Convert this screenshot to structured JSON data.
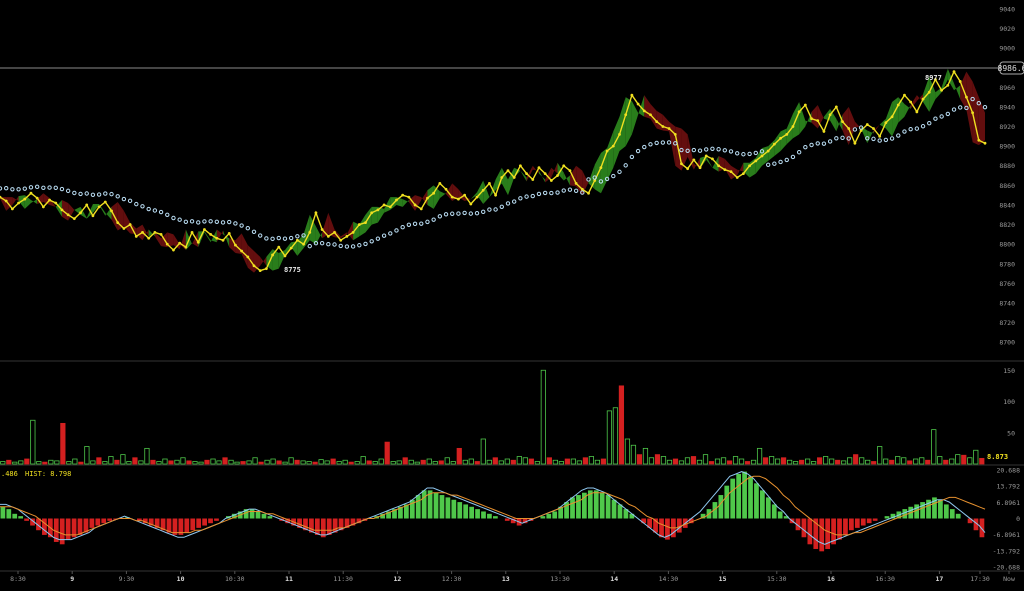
{
  "chart_data": [
    {
      "type": "line",
      "panel": "price",
      "ylim": [
        8690,
        9045
      ],
      "y_ticks": [
        8700,
        8720,
        8740,
        8760,
        8780,
        8800,
        8820,
        8840,
        8860,
        8880,
        8900,
        8920,
        8940,
        8960,
        9000,
        9020,
        9040
      ],
      "current_price_label": "8986.6",
      "current_price": 8986.6,
      "annotations": [
        {
          "text": "8977",
          "x": "17",
          "y": 8977
        },
        {
          "text": "8775",
          "x": "11",
          "y": 8775
        }
      ],
      "series": [
        {
          "values": [
            8848,
            8844,
            8836,
            8842,
            8846,
            8852,
            8847,
            8838,
            8845,
            8842,
            8835,
            8830,
            8826,
            8832,
            8840,
            8829,
            8838,
            8843,
            8834,
            8822,
            8816,
            8820,
            8808,
            8812,
            8806,
            8812,
            8810,
            8800,
            8794,
            8801,
            8797,
            8812,
            8802,
            8815,
            8810,
            8806,
            8804,
            8811,
            8799,
            8793,
            8787,
            8778,
            8773,
            8775,
            8789,
            8797,
            8788,
            8796,
            8804,
            8800,
            8812,
            8832,
            8815,
            8808,
            8812,
            8804,
            8808,
            8812,
            8820,
            8822,
            8832,
            8835,
            8840,
            8838,
            8845,
            8850,
            8848,
            8840,
            8836,
            8847,
            8852,
            8862,
            8856,
            8848,
            8846,
            8850,
            8841,
            8848,
            8855,
            8862,
            8850,
            8868,
            8875,
            8868,
            8880,
            8872,
            8866,
            8878,
            8872,
            8865,
            8870,
            8880,
            8875,
            8862,
            8856,
            8852,
            8865,
            8878,
            8895,
            8900,
            8912,
            8932,
            8952,
            8943,
            8936,
            8932,
            8925,
            8920,
            8918,
            8912,
            8882,
            8877,
            8886,
            8878,
            8890,
            8887,
            8880,
            8876,
            8874,
            8868,
            8872,
            8880,
            8885,
            8890,
            8895,
            8902,
            8908,
            8912,
            8920,
            8935,
            8942,
            8928,
            8926,
            8915,
            8932,
            8940,
            8925,
            8918,
            8903,
            8916,
            8922,
            8918,
            8910,
            8924,
            8930,
            8942,
            8952,
            8945,
            8935,
            8948,
            8955,
            8968,
            8957,
            8962,
            8976,
            8966,
            8950,
            8934,
            8906,
            8903
          ]
        }
      ]
    },
    {
      "type": "bar",
      "panel": "volume",
      "ylim": [
        0,
        160
      ],
      "y_ticks": [
        50,
        100,
        150
      ],
      "current_value_label": "8.873",
      "current_value": 8.873,
      "series": [
        {
          "values": [
            4,
            6,
            3,
            5,
            8,
            70,
            4,
            3,
            6,
            5,
            65,
            4,
            8,
            3,
            28,
            5,
            10,
            4,
            12,
            6,
            15,
            4,
            10,
            5,
            25,
            6,
            4,
            8,
            5,
            6,
            10,
            5,
            4,
            3,
            6,
            8,
            5,
            10,
            6,
            3,
            4,
            5,
            10,
            3,
            6,
            8,
            5,
            3,
            10,
            6,
            5,
            4,
            3,
            7,
            5,
            8,
            4,
            6,
            3,
            4,
            12,
            5,
            4,
            8,
            35,
            4,
            5,
            10,
            6,
            3,
            6,
            8,
            4,
            5,
            10,
            4,
            25,
            6,
            8,
            4,
            40,
            6,
            10,
            5,
            8,
            6,
            12,
            10,
            8,
            4,
            150,
            10,
            6,
            4,
            8,
            8,
            5,
            10,
            12,
            6,
            8,
            85,
            90,
            125,
            40,
            30,
            15,
            25,
            10,
            15,
            12,
            6,
            8,
            5,
            10,
            12,
            6,
            15,
            4,
            8,
            10,
            5,
            12,
            8,
            4,
            6,
            25,
            10,
            12,
            8,
            10,
            6,
            4,
            6,
            8,
            4,
            10,
            12,
            8,
            6,
            5,
            10,
            15,
            10,
            6,
            4,
            28,
            8,
            6,
            12,
            10,
            5,
            8,
            10,
            6,
            55,
            12,
            6,
            8,
            15,
            14,
            10,
            22,
            9
          ]
        }
      ]
    },
    {
      "type": "bar",
      "panel": "macd",
      "ylim": [
        -20.688,
        20.688
      ],
      "y_ticks": [
        20.688,
        13.792,
        6.8961,
        0,
        -6.8961,
        -13.792,
        -20.688
      ],
      "y_tick_labels": [
        "20.688",
        "13.792",
        "6.8961",
        "0",
        "-6.8961",
        "-13.792",
        "-20.688"
      ],
      "header_labels": {
        "left": ".486",
        "hist": "HIST: 8.798"
      },
      "series": [
        {
          "values": [
            5,
            4,
            2,
            1,
            -1,
            -3,
            -5,
            -7,
            -8,
            -10,
            -11,
            -9,
            -8,
            -7,
            -6,
            -4,
            -3,
            -2,
            -1,
            -0.5,
            0,
            0.5,
            0,
            -1,
            -2,
            -3,
            -4,
            -5,
            -6,
            -7,
            -7,
            -6,
            -5,
            -4,
            -3,
            -2,
            -1,
            0,
            1,
            2,
            3,
            4,
            4,
            3,
            2,
            1,
            0,
            -1,
            -2,
            -3,
            -4,
            -5,
            -6,
            -7,
            -8,
            -7,
            -6,
            -5,
            -4,
            -3,
            -2,
            -1,
            0,
            1,
            2,
            3,
            4,
            5,
            6,
            8,
            10,
            12,
            12,
            11,
            10,
            9,
            8,
            7,
            6,
            5,
            4,
            3,
            2,
            1,
            0,
            -1,
            -2,
            -3,
            -2,
            -1,
            0,
            1,
            2,
            3,
            5,
            7,
            9,
            10,
            11,
            12,
            12,
            11,
            10,
            8,
            6,
            4,
            2,
            0,
            -2,
            -4,
            -6,
            -8,
            -9,
            -8,
            -6,
            -4,
            -2,
            0,
            2,
            4,
            7,
            10,
            14,
            17,
            19,
            20,
            18,
            15,
            12,
            9,
            6,
            3,
            1,
            -2,
            -5,
            -8,
            -11,
            -13,
            -14,
            -13,
            -11,
            -9,
            -7,
            -5,
            -4,
            -3,
            -2,
            -1,
            0,
            1,
            2,
            3,
            4,
            5,
            6,
            7,
            8,
            9,
            8,
            6,
            4,
            2,
            0,
            -2,
            -5,
            -8
          ]
        },
        {
          "values": [
            6,
            6,
            5,
            4,
            2,
            0,
            -2,
            -4,
            -6,
            -8,
            -9,
            -9,
            -9,
            -8,
            -7,
            -6,
            -4,
            -3,
            -2,
            -1,
            0,
            1,
            0,
            -1,
            -2,
            -3,
            -4,
            -5,
            -6,
            -7,
            -8,
            -8,
            -7,
            -6,
            -5,
            -4,
            -3,
            -2,
            0,
            1,
            2,
            3,
            4,
            4,
            3,
            2,
            1,
            0,
            -1,
            -2,
            -3,
            -4,
            -5,
            -6,
            -7,
            -7,
            -6,
            -5,
            -4,
            -3,
            -2,
            -1,
            0,
            1,
            2,
            3,
            4,
            5,
            6,
            7,
            9,
            11,
            13,
            13,
            12,
            11,
            10,
            9,
            8,
            7,
            6,
            5,
            4,
            3,
            2,
            1,
            0,
            -1,
            -2,
            -1,
            0,
            1,
            2,
            3,
            4,
            6,
            8,
            10,
            12,
            13,
            13,
            12,
            11,
            9,
            7,
            5,
            3,
            1,
            -1,
            -3,
            -5,
            -7,
            -8,
            -7,
            -5,
            -3,
            -1,
            1,
            3,
            6,
            9,
            12,
            15,
            18,
            19,
            20,
            19,
            17,
            14,
            11,
            8,
            5,
            3,
            0,
            -2,
            -4,
            -6,
            -8,
            -10,
            -11,
            -10,
            -9,
            -8,
            -7,
            -6,
            -5,
            -4,
            -3,
            -2,
            -1,
            0,
            1,
            2,
            3,
            4,
            5,
            6,
            7,
            8,
            8,
            7,
            5,
            3,
            1,
            -1,
            -3,
            -6
          ]
        },
        {
          "values": [
            5,
            5,
            5,
            4,
            3,
            2,
            1,
            -1,
            -3,
            -5,
            -6,
            -7,
            -7,
            -7,
            -6,
            -5,
            -4,
            -3,
            -2,
            -1,
            0,
            0,
            0,
            -1,
            -1,
            -2,
            -3,
            -4,
            -5,
            -6,
            -6,
            -6,
            -6,
            -5,
            -5,
            -4,
            -3,
            -2,
            -1,
            0,
            1,
            2,
            3,
            3,
            3,
            2,
            2,
            1,
            0,
            -1,
            -2,
            -3,
            -4,
            -5,
            -5,
            -5,
            -5,
            -4,
            -4,
            -3,
            -2,
            -1,
            0,
            0,
            1,
            2,
            3,
            4,
            5,
            6,
            7,
            8,
            10,
            11,
            11,
            11,
            10,
            10,
            9,
            8,
            7,
            6,
            5,
            4,
            3,
            2,
            1,
            0,
            0,
            0,
            0,
            1,
            2,
            3,
            4,
            5,
            6,
            7,
            8,
            10,
            11,
            11,
            11,
            10,
            9,
            8,
            6,
            5,
            3,
            1,
            0,
            -2,
            -3,
            -4,
            -4,
            -3,
            -2,
            -1,
            0,
            1,
            3,
            5,
            8,
            11,
            13,
            15,
            17,
            18,
            18,
            17,
            15,
            13,
            10,
            8,
            5,
            3,
            1,
            -1,
            -3,
            -5,
            -6,
            -7,
            -7,
            -7,
            -6,
            -6,
            -5,
            -4,
            -3,
            -2,
            -1,
            0,
            1,
            2,
            3,
            4,
            5,
            6,
            7,
            8,
            9,
            9,
            8,
            7,
            6,
            5,
            4
          ]
        }
      ]
    },
    {
      "type": "line",
      "panel": "time_axis",
      "categories": [
        "8:30",
        "9",
        "9:30",
        "10",
        "10:30",
        "11",
        "11:30",
        "12",
        "12:30",
        "13",
        "13:30",
        "14",
        "14:30",
        "15",
        "15:30",
        "16",
        "16:30",
        "17",
        "17:30",
        "Now"
      ]
    }
  ],
  "colors": {
    "background": "#000000",
    "price_line": "#f0e020",
    "cloud_up": "#2e8b1e",
    "cloud_down": "#6e1010",
    "sar_dots": "#b9dcf2",
    "bar_up": "#4fc84a",
    "bar_down": "#d42020",
    "macd_line": "#8fc7ef",
    "signal_line": "#e5902f",
    "axis_text": "#9a9a9a",
    "grid_line": "#2a2a2a"
  }
}
